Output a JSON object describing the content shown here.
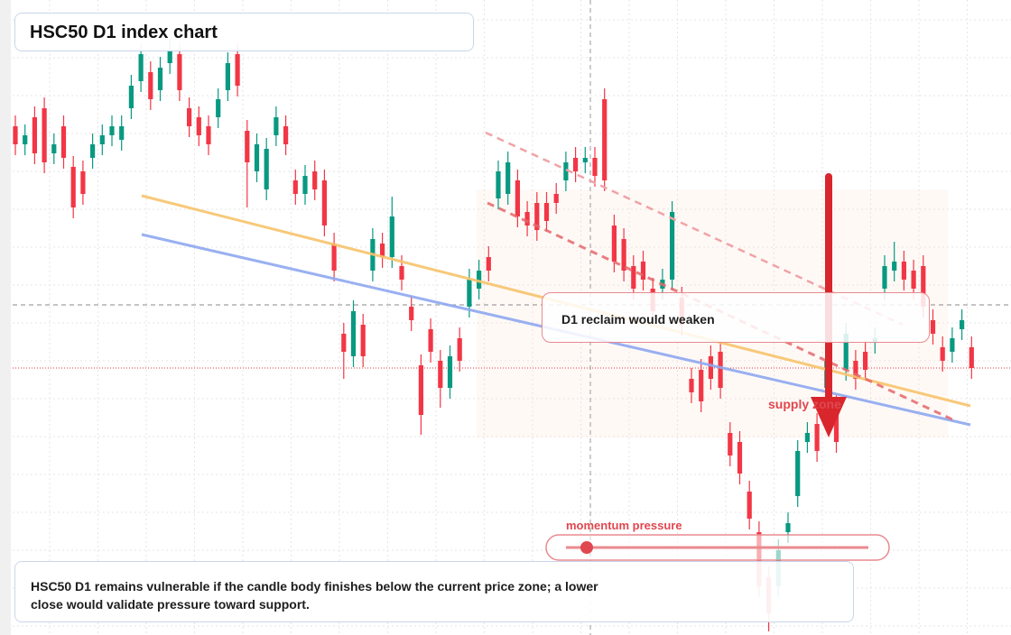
{
  "chart_data": {
    "type": "candlestick",
    "title": "HSC50 D1 index chart",
    "annotations": {
      "reclaim": "D1 reclaim would weaken",
      "supply": "supply zone",
      "momentum": "momentum pressure",
      "summary": "HSC50 D1 remains vulnerable if the candle body finishes below the current price zone; a lower close would validate pressure toward support."
    },
    "ylim": [
      0,
      704
    ],
    "grid": true,
    "up_color": "#089981",
    "down_color": "#f23645",
    "open": [
      564,
      544,
      574,
      584,
      534,
      564,
      519,
      514,
      529,
      544,
      554,
      549,
      584,
      614,
      624,
      604,
      634,
      644,
      584,
      574,
      564,
      574,
      604,
      644,
      559,
      514,
      494,
      554,
      564,
      504,
      489,
      514,
      504,
      434,
      334,
      309,
      344,
      404,
      434,
      419,
      409,
      364,
      299,
      339,
      304,
      274,
      329,
      364,
      384,
      419,
      484,
      489,
      504,
      469,
      479,
      479,
      489,
      504,
      529,
      524,
      529,
      594,
      454,
      439,
      409,
      414,
      384,
      384,
      394,
      374,
      284,
      294,
      309,
      314,
      224,
      214,
      159,
      114,
      64,
      54,
      114,
      154,
      214,
      234,
      274,
      254,
      294,
      304,
      314,
      324,
      384,
      404,
      414,
      404,
      409,
      349,
      319,
      314,
      339,
      319
    ],
    "high": [
      576,
      566,
      586,
      596,
      556,
      576,
      531,
      526,
      556,
      566,
      576,
      576,
      621,
      656,
      636,
      641,
      661,
      656,
      596,
      586,
      576,
      606,
      646,
      656,
      571,
      556,
      551,
      586,
      576,
      516,
      521,
      526,
      516,
      446,
      346,
      371,
      356,
      451,
      446,
      486,
      421,
      376,
      311,
      351,
      316,
      321,
      341,
      406,
      416,
      431,
      526,
      536,
      516,
      481,
      491,
      491,
      501,
      536,
      541,
      541,
      541,
      606,
      466,
      451,
      421,
      426,
      396,
      406,
      481,
      386,
      296,
      306,
      321,
      326,
      236,
      226,
      171,
      126,
      76,
      106,
      136,
      216,
      236,
      246,
      316,
      266,
      346,
      316,
      326,
      341,
      421,
      436,
      426,
      416,
      421,
      361,
      331,
      341,
      361,
      331
    ],
    "low": [
      532,
      532,
      522,
      512,
      522,
      517,
      462,
      477,
      517,
      532,
      542,
      537,
      572,
      602,
      582,
      592,
      622,
      592,
      552,
      542,
      532,
      562,
      592,
      597,
      474,
      502,
      482,
      542,
      532,
      477,
      477,
      482,
      442,
      392,
      284,
      297,
      297,
      392,
      407,
      407,
      382,
      337,
      222,
      302,
      252,
      262,
      292,
      352,
      372,
      392,
      472,
      477,
      452,
      442,
      437,
      447,
      467,
      492,
      502,
      512,
      497,
      492,
      402,
      392,
      372,
      382,
      347,
      372,
      382,
      332,
      257,
      247,
      272,
      262,
      187,
      167,
      117,
      42,
      4,
      42,
      102,
      142,
      202,
      192,
      262,
      202,
      282,
      272,
      282,
      312,
      372,
      392,
      382,
      372,
      352,
      322,
      292,
      302,
      327,
      284
    ],
    "close": [
      544,
      554,
      534,
      524,
      544,
      529,
      474,
      489,
      544,
      554,
      564,
      564,
      609,
      644,
      594,
      629,
      649,
      604,
      564,
      554,
      544,
      594,
      634,
      609,
      524,
      544,
      539,
      574,
      544,
      489,
      509,
      494,
      454,
      404,
      314,
      359,
      309,
      439,
      419,
      464,
      394,
      349,
      244,
      314,
      274,
      309,
      304,
      394,
      404,
      404,
      514,
      524,
      464,
      454,
      449,
      459,
      479,
      524,
      514,
      529,
      509,
      504,
      414,
      404,
      384,
      394,
      359,
      394,
      469,
      344,
      269,
      259,
      284,
      274,
      199,
      179,
      129,
      54,
      24,
      94,
      124,
      204,
      224,
      204,
      304,
      214,
      334,
      284,
      294,
      329,
      409,
      414,
      394,
      384,
      364,
      334,
      304,
      329,
      349,
      296
    ]
  }
}
